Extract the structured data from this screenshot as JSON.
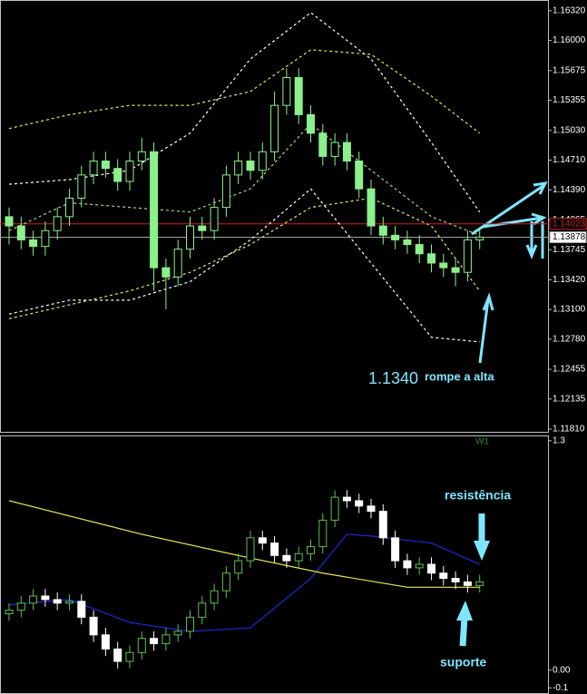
{
  "chart_data": [
    {
      "type": "candlestick",
      "open": [
        1.141,
        1.14,
        1.1385,
        1.1378,
        1.1395,
        1.141,
        1.143,
        1.1455,
        1.147,
        1.1462,
        1.1448,
        1.147,
        1.148,
        1.1355,
        1.1345,
        1.1375,
        1.14,
        1.1395,
        1.142,
        1.1455,
        1.147,
        1.146,
        1.148,
        1.153,
        1.156,
        1.152,
        1.15,
        1.1475,
        1.149,
        1.147,
        1.144,
        1.14,
        1.139,
        1.1385,
        1.138,
        1.137,
        1.136,
        1.1355,
        1.135,
        1.1385
      ],
      "high": [
        1.142,
        1.141,
        1.1395,
        1.1405,
        1.142,
        1.144,
        1.1465,
        1.148,
        1.148,
        1.1472,
        1.148,
        1.1495,
        1.149,
        1.1365,
        1.1385,
        1.141,
        1.141,
        1.143,
        1.1465,
        1.148,
        1.148,
        1.149,
        1.1545,
        1.157,
        1.157,
        1.153,
        1.151,
        1.15,
        1.15,
        1.148,
        1.145,
        1.141,
        1.14,
        1.1395,
        1.139,
        1.138,
        1.137,
        1.1365,
        1.1395,
        1.1398
      ],
      "low": [
        1.138,
        1.1375,
        1.1368,
        1.1368,
        1.1385,
        1.14,
        1.142,
        1.1445,
        1.1452,
        1.1438,
        1.1438,
        1.146,
        1.133,
        1.131,
        1.1335,
        1.1365,
        1.1385,
        1.1385,
        1.141,
        1.1445,
        1.145,
        1.145,
        1.147,
        1.152,
        1.151,
        1.149,
        1.1465,
        1.1465,
        1.146,
        1.143,
        1.139,
        1.138,
        1.1375,
        1.137,
        1.136,
        1.135,
        1.1345,
        1.1335,
        1.134,
        1.1375
      ],
      "close": [
        1.14,
        1.1385,
        1.1378,
        1.1395,
        1.141,
        1.143,
        1.1455,
        1.147,
        1.1462,
        1.1448,
        1.147,
        1.148,
        1.1355,
        1.1345,
        1.1375,
        1.14,
        1.1395,
        1.142,
        1.1455,
        1.147,
        1.146,
        1.148,
        1.153,
        1.156,
        1.152,
        1.15,
        1.1475,
        1.149,
        1.147,
        1.144,
        1.14,
        1.139,
        1.1385,
        1.138,
        1.137,
        1.136,
        1.1355,
        1.135,
        1.1385,
        1.1388
      ],
      "up_color": "#8cf08c",
      "down_color": "#8cf08c",
      "lines": [
        {
          "x": [
            0,
            5,
            10,
            15,
            20,
            25,
            30,
            35,
            39
          ],
          "values": [
            1.1445,
            1.145,
            1.146,
            1.15,
            1.158,
            1.163,
            1.158,
            1.149,
            1.1415
          ],
          "color": "#ffffff"
        },
        {
          "x": [
            0,
            5,
            10,
            15,
            20,
            25,
            30,
            35,
            39
          ],
          "values": [
            1.1305,
            1.132,
            1.132,
            1.134,
            1.1385,
            1.144,
            1.136,
            1.128,
            1.1275
          ],
          "color": "#ffffff"
        },
        {
          "x": [
            0,
            5,
            10,
            15,
            20,
            25,
            30,
            35,
            39
          ],
          "values": [
            1.1505,
            1.152,
            1.153,
            1.153,
            1.1545,
            1.159,
            1.1585,
            1.154,
            1.15
          ],
          "color": "#e8e85a"
        },
        {
          "x": [
            0,
            5,
            10,
            15,
            20,
            25,
            30,
            35,
            39
          ],
          "values": [
            1.13,
            1.1315,
            1.133,
            1.135,
            1.138,
            1.142,
            1.143,
            1.14,
            1.133
          ],
          "color": "#e8e85a"
        },
        {
          "x": [
            0,
            5,
            10,
            15,
            20,
            25,
            30,
            35,
            39
          ],
          "values": [
            1.1395,
            1.1425,
            1.142,
            1.1415,
            1.144,
            1.151,
            1.146,
            1.141,
            1.139
          ],
          "color": "#b0d080"
        }
      ],
      "hlines": [
        {
          "value": 1.14023,
          "color": "#d02020"
        },
        {
          "value": 1.13878,
          "color": "#a0a0a0"
        }
      ],
      "ylim": [
        1.11771,
        1.16436
      ],
      "yticks": [
        {
          "value": 1.1632,
          "label": "1.16320"
        },
        {
          "value": 1.16,
          "label": "1.16000"
        },
        {
          "value": 1.15675,
          "label": "1.15675"
        },
        {
          "value": 1.15355,
          "label": "1.15355"
        },
        {
          "value": 1.1503,
          "label": "1.15030"
        },
        {
          "value": 1.1471,
          "label": "1.14710"
        },
        {
          "value": 1.1439,
          "label": "1.14390"
        },
        {
          "value": 1.14065,
          "label": "1.14065"
        },
        {
          "value": 1.13745,
          "label": "1.13745"
        },
        {
          "value": 1.1342,
          "label": "1.13420"
        },
        {
          "value": 1.131,
          "label": "1.13100"
        },
        {
          "value": 1.1278,
          "label": "1.12780"
        },
        {
          "value": 1.12455,
          "label": "1.12455"
        },
        {
          "value": 1.12135,
          "label": "1.12135"
        },
        {
          "value": 1.1181,
          "label": "1.11810"
        }
      ],
      "annotations": [
        "1.1340",
        "rompe a alta"
      ]
    },
    {
      "type": "candlestick",
      "label": "W1",
      "open": [
        0.32,
        0.34,
        0.38,
        0.42,
        0.4,
        0.38,
        0.39,
        0.3,
        0.2,
        0.12,
        0.05,
        0.1,
        0.18,
        0.15,
        0.2,
        0.22,
        0.3,
        0.38,
        0.45,
        0.55,
        0.62,
        0.75,
        0.72,
        0.65,
        0.62,
        0.66,
        0.7,
        0.85,
        0.98,
        0.96,
        0.93,
        0.9,
        0.75,
        0.62,
        0.58,
        0.6,
        0.55,
        0.52,
        0.5,
        0.48
      ],
      "high": [
        0.38,
        0.42,
        0.46,
        0.46,
        0.44,
        0.43,
        0.43,
        0.34,
        0.24,
        0.16,
        0.14,
        0.22,
        0.22,
        0.24,
        0.26,
        0.34,
        0.42,
        0.49,
        0.59,
        0.66,
        0.79,
        0.79,
        0.76,
        0.69,
        0.7,
        0.74,
        0.89,
        1.02,
        1.02,
        1.0,
        0.97,
        0.94,
        0.79,
        0.66,
        0.64,
        0.64,
        0.59,
        0.56,
        0.54,
        0.54
      ],
      "low": [
        0.28,
        0.3,
        0.34,
        0.36,
        0.34,
        0.34,
        0.26,
        0.16,
        0.08,
        0.01,
        0.01,
        0.06,
        0.11,
        0.11,
        0.16,
        0.18,
        0.26,
        0.34,
        0.41,
        0.51,
        0.58,
        0.68,
        0.61,
        0.58,
        0.58,
        0.62,
        0.66,
        0.81,
        0.92,
        0.89,
        0.86,
        0.71,
        0.58,
        0.54,
        0.54,
        0.51,
        0.48,
        0.46,
        0.44,
        0.44
      ],
      "close": [
        0.34,
        0.38,
        0.42,
        0.4,
        0.38,
        0.39,
        0.3,
        0.2,
        0.12,
        0.05,
        0.1,
        0.18,
        0.15,
        0.2,
        0.22,
        0.3,
        0.38,
        0.45,
        0.55,
        0.62,
        0.75,
        0.72,
        0.65,
        0.62,
        0.66,
        0.7,
        0.85,
        0.98,
        0.96,
        0.93,
        0.9,
        0.75,
        0.62,
        0.58,
        0.6,
        0.55,
        0.52,
        0.5,
        0.48,
        0.5
      ],
      "up_color": "#5fbf4f",
      "down_color": "#ffffff",
      "lines": [
        {
          "x": [
            0,
            5,
            10,
            15,
            20,
            25,
            28,
            30,
            35,
            39
          ],
          "values": [
            0.37,
            0.4,
            0.27,
            0.22,
            0.24,
            0.52,
            0.77,
            0.76,
            0.72,
            0.6
          ],
          "color": "#1a2ad8"
        },
        {
          "x": [
            0,
            11,
            19,
            26,
            33,
            39
          ],
          "values": [
            0.96,
            0.77,
            0.65,
            0.55,
            0.47,
            0.47
          ],
          "color": "#e8e85a"
        }
      ],
      "ylim": [
        -0.135,
        1.33
      ],
      "yticks": [
        1.3,
        {
          "value": 0,
          "label": "0.00"
        },
        -0.1
      ],
      "annotations": [
        "resistência",
        "suporte"
      ]
    }
  ]
}
